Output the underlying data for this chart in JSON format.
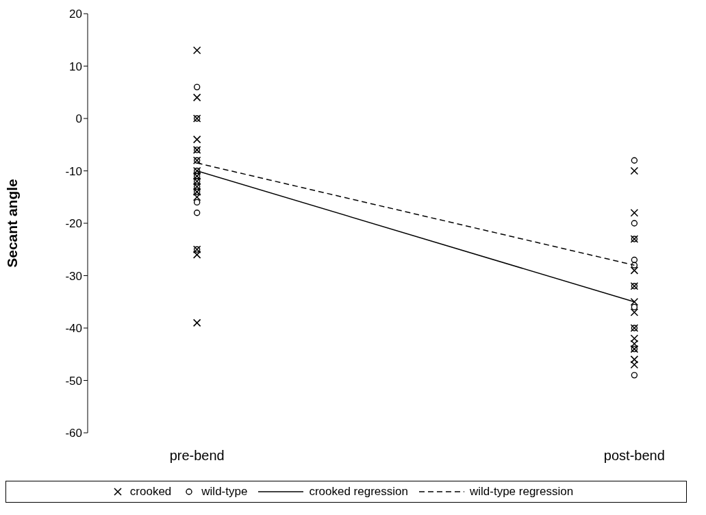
{
  "chart_data": {
    "type": "scatter",
    "ylabel": "Secant angle",
    "categories": [
      "pre-bend",
      "post-bend"
    ],
    "ylim": [
      -60,
      20
    ],
    "yticks": [
      -60,
      -50,
      -40,
      -30,
      -20,
      -10,
      0,
      10,
      20
    ],
    "grid": false,
    "legend": "bottom",
    "series": [
      {
        "name": "crooked",
        "type": "scatter",
        "marker": "cross",
        "color": "#000000",
        "x": [
          "pre-bend",
          "pre-bend",
          "pre-bend",
          "pre-bend",
          "pre-bend",
          "pre-bend",
          "pre-bend",
          "pre-bend",
          "pre-bend",
          "pre-bend",
          "pre-bend",
          "pre-bend",
          "pre-bend",
          "pre-bend",
          "pre-bend",
          "post-bend",
          "post-bend",
          "post-bend",
          "post-bend",
          "post-bend",
          "post-bend",
          "post-bend",
          "post-bend",
          "post-bend",
          "post-bend",
          "post-bend",
          "post-bend",
          "post-bend"
        ],
        "values": [
          13,
          4,
          0,
          -4,
          -6,
          -8,
          -10,
          -11,
          -12,
          -13,
          -14,
          -15,
          -25,
          -26,
          -39,
          -10,
          -18,
          -23,
          -29,
          -32,
          -35,
          -37,
          -40,
          -42,
          -43,
          -44,
          -46,
          -47
        ]
      },
      {
        "name": "wild-type",
        "type": "scatter",
        "marker": "circle",
        "color": "#000000",
        "x": [
          "pre-bend",
          "pre-bend",
          "pre-bend",
          "pre-bend",
          "pre-bend",
          "pre-bend",
          "pre-bend",
          "pre-bend",
          "pre-bend",
          "pre-bend",
          "pre-bend",
          "pre-bend",
          "post-bend",
          "post-bend",
          "post-bend",
          "post-bend",
          "post-bend",
          "post-bend",
          "post-bend",
          "post-bend",
          "post-bend",
          "post-bend"
        ],
        "values": [
          6,
          0,
          -6,
          -8,
          -10,
          -11,
          -12,
          -13,
          -14,
          -16,
          -18,
          -25,
          -8,
          -20,
          -23,
          -27,
          -28,
          -32,
          -36,
          -40,
          -44,
          -49
        ]
      },
      {
        "name": "crooked regression",
        "type": "line",
        "marker": "none",
        "line_style": "solid",
        "color": "#000000",
        "values": [
          -10,
          -35
        ]
      },
      {
        "name": "wild-type regression",
        "type": "line",
        "marker": "none",
        "line_style": "dashed",
        "color": "#000000",
        "values": [
          -8.5,
          -28
        ]
      }
    ]
  }
}
